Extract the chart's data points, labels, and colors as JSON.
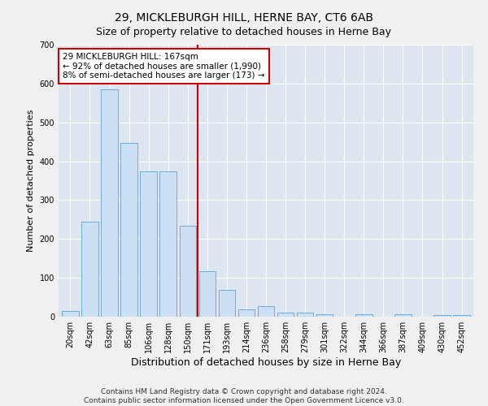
{
  "title": "29, MICKLEBURGH HILL, HERNE BAY, CT6 6AB",
  "subtitle": "Size of property relative to detached houses in Herne Bay",
  "xlabel": "Distribution of detached houses by size in Herne Bay",
  "ylabel": "Number of detached properties",
  "categories": [
    "20sqm",
    "42sqm",
    "63sqm",
    "85sqm",
    "106sqm",
    "128sqm",
    "150sqm",
    "171sqm",
    "193sqm",
    "214sqm",
    "236sqm",
    "258sqm",
    "279sqm",
    "301sqm",
    "322sqm",
    "344sqm",
    "366sqm",
    "387sqm",
    "409sqm",
    "430sqm",
    "452sqm"
  ],
  "values": [
    15,
    245,
    585,
    447,
    373,
    373,
    235,
    118,
    68,
    18,
    28,
    10,
    10,
    7,
    0,
    7,
    0,
    7,
    0,
    5,
    5
  ],
  "bar_color": "#cce0f5",
  "bar_edge_color": "#6aaed6",
  "vline_x_index": 7,
  "vline_color": "#cc0000",
  "annotation_text": "29 MICKLEBURGH HILL: 167sqm\n← 92% of detached houses are smaller (1,990)\n8% of semi-detached houses are larger (173) →",
  "annotation_box_color": "#ffffff",
  "annotation_box_edge": "#cc0000",
  "ylim": [
    0,
    700
  ],
  "yticks": [
    0,
    100,
    200,
    300,
    400,
    500,
    600,
    700
  ],
  "background_color": "#dde6f0",
  "fig_background_color": "#f0f0f0",
  "footer_text": "Contains HM Land Registry data © Crown copyright and database right 2024.\nContains public sector information licensed under the Open Government Licence v3.0.",
  "title_fontsize": 10,
  "subtitle_fontsize": 9,
  "xlabel_fontsize": 9,
  "ylabel_fontsize": 8,
  "tick_fontsize": 7,
  "footer_fontsize": 6.5,
  "annotation_fontsize": 7.5
}
